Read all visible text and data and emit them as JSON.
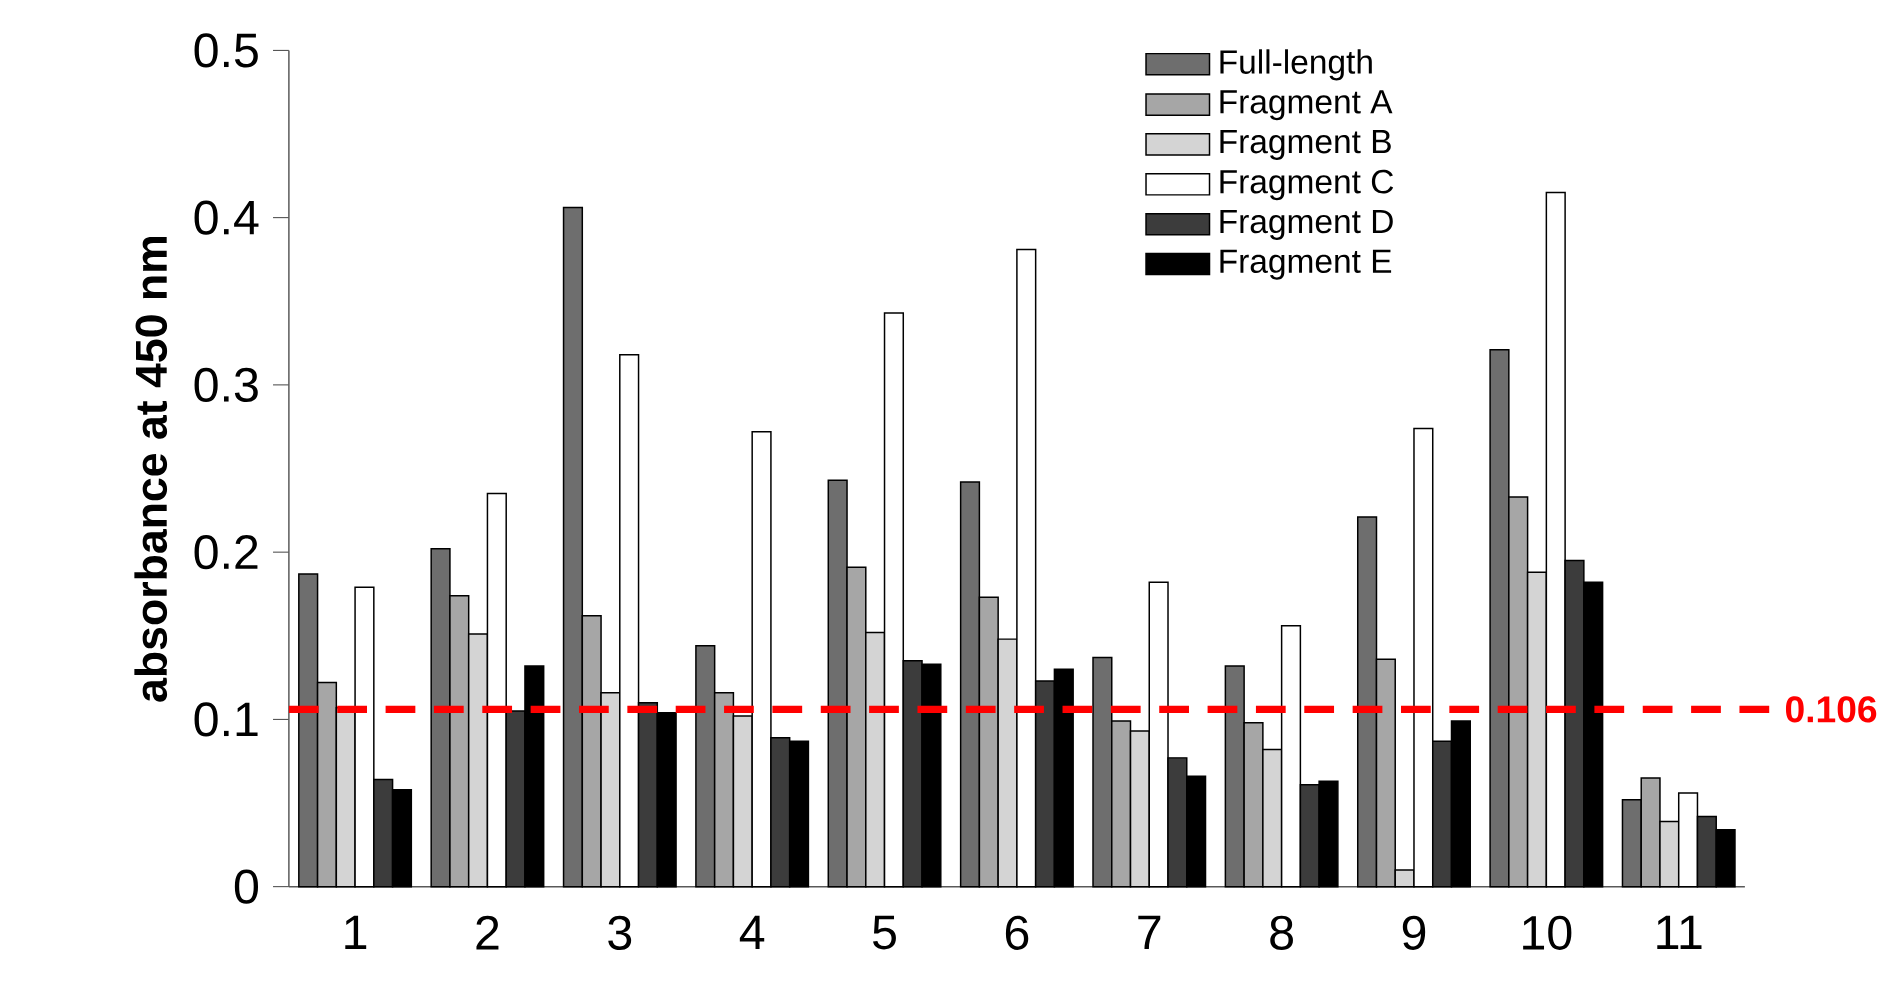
{
  "chart_data": {
    "type": "bar",
    "ylabel": "absorbance at 450 nm",
    "categories": [
      "1",
      "2",
      "3",
      "4",
      "5",
      "6",
      "7",
      "8",
      "9",
      "10",
      "11"
    ],
    "series": [
      {
        "name": "Full-length",
        "color": "#6e6e6e",
        "values": [
          0.187,
          0.202,
          0.406,
          0.144,
          0.243,
          0.242,
          0.137,
          0.132,
          0.221,
          0.321,
          0.052
        ]
      },
      {
        "name": "Fragment A",
        "color": "#a6a6a6",
        "values": [
          0.122,
          0.174,
          0.162,
          0.116,
          0.191,
          0.173,
          0.099,
          0.098,
          0.136,
          0.233,
          0.065
        ]
      },
      {
        "name": "Fragment B",
        "color": "#d4d4d4",
        "values": [
          0.107,
          0.151,
          0.116,
          0.102,
          0.152,
          0.148,
          0.093,
          0.082,
          0.01,
          0.188,
          0.039
        ]
      },
      {
        "name": "Fragment C",
        "color": "#ffffff",
        "values": [
          0.179,
          0.235,
          0.318,
          0.272,
          0.343,
          0.381,
          0.182,
          0.156,
          0.274,
          0.415,
          0.056
        ]
      },
      {
        "name": "Fragment D",
        "color": "#3c3c3c",
        "values": [
          0.064,
          0.105,
          0.11,
          0.089,
          0.135,
          0.123,
          0.077,
          0.061,
          0.087,
          0.195,
          0.042
        ]
      },
      {
        "name": "Fragment E",
        "color": "#000000",
        "values": [
          0.058,
          0.132,
          0.104,
          0.087,
          0.133,
          0.13,
          0.066,
          0.063,
          0.099,
          0.182,
          0.034
        ]
      }
    ],
    "ylim": [
      0,
      0.5
    ],
    "yticks": [
      0,
      0.1,
      0.2,
      0.3,
      0.4,
      0.5
    ],
    "ref_lines": [
      {
        "axis": "y",
        "value": 0.106,
        "label": "0.106",
        "color": "#ff0000",
        "line_style": "dashed"
      }
    ],
    "legend": "top right",
    "grid": false
  }
}
